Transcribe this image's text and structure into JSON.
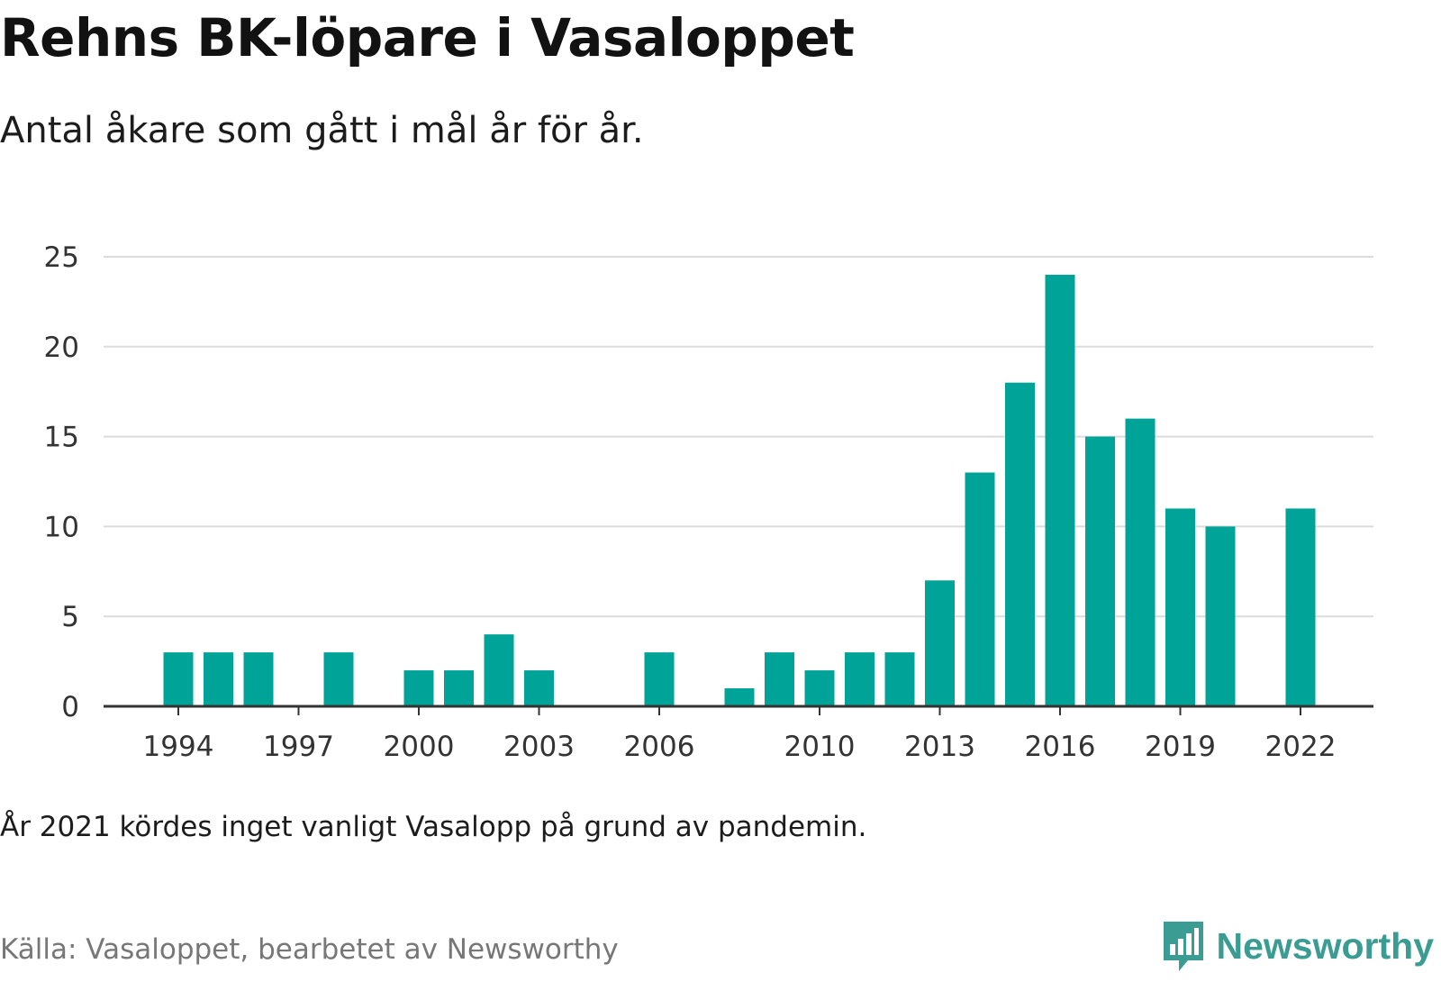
{
  "header": {
    "title": "Rehns BK-löpare i Vasaloppet",
    "subtitle": "Antal åkare som gått i mål år för år."
  },
  "footer": {
    "note": "År 2021 kördes inget vanligt Vasalopp på grund av pandemin.",
    "source": "Källa: Vasaloppet, bearbetet av Newsworthy",
    "brand": "Newsworthy",
    "brand_icon": "newsworthy-logo-icon"
  },
  "colors": {
    "bar": "#00a398",
    "gridline": "#dcdcdc",
    "axis": "#333333",
    "brand": "#3a9c92"
  },
  "chart_data": {
    "type": "bar",
    "title": "Rehns BK-löpare i Vasaloppet",
    "subtitle": "Antal åkare som gått i mål år för år.",
    "xlabel": "",
    "ylabel": "",
    "ylim": [
      0,
      25
    ],
    "yticks": [
      0,
      5,
      10,
      15,
      20,
      25
    ],
    "xticks": [
      1994,
      1997,
      2000,
      2003,
      2006,
      2010,
      2013,
      2016,
      2019,
      2022
    ],
    "grid": true,
    "x": [
      1994,
      1995,
      1996,
      1998,
      2000,
      2001,
      2002,
      2003,
      2006,
      2008,
      2009,
      2010,
      2011,
      2012,
      2013,
      2014,
      2015,
      2016,
      2017,
      2018,
      2019,
      2020,
      2022
    ],
    "values": [
      3,
      3,
      3,
      3,
      2,
      2,
      4,
      2,
      3,
      1,
      3,
      2,
      3,
      3,
      7,
      13,
      18,
      24,
      15,
      16,
      11,
      10,
      11
    ]
  }
}
